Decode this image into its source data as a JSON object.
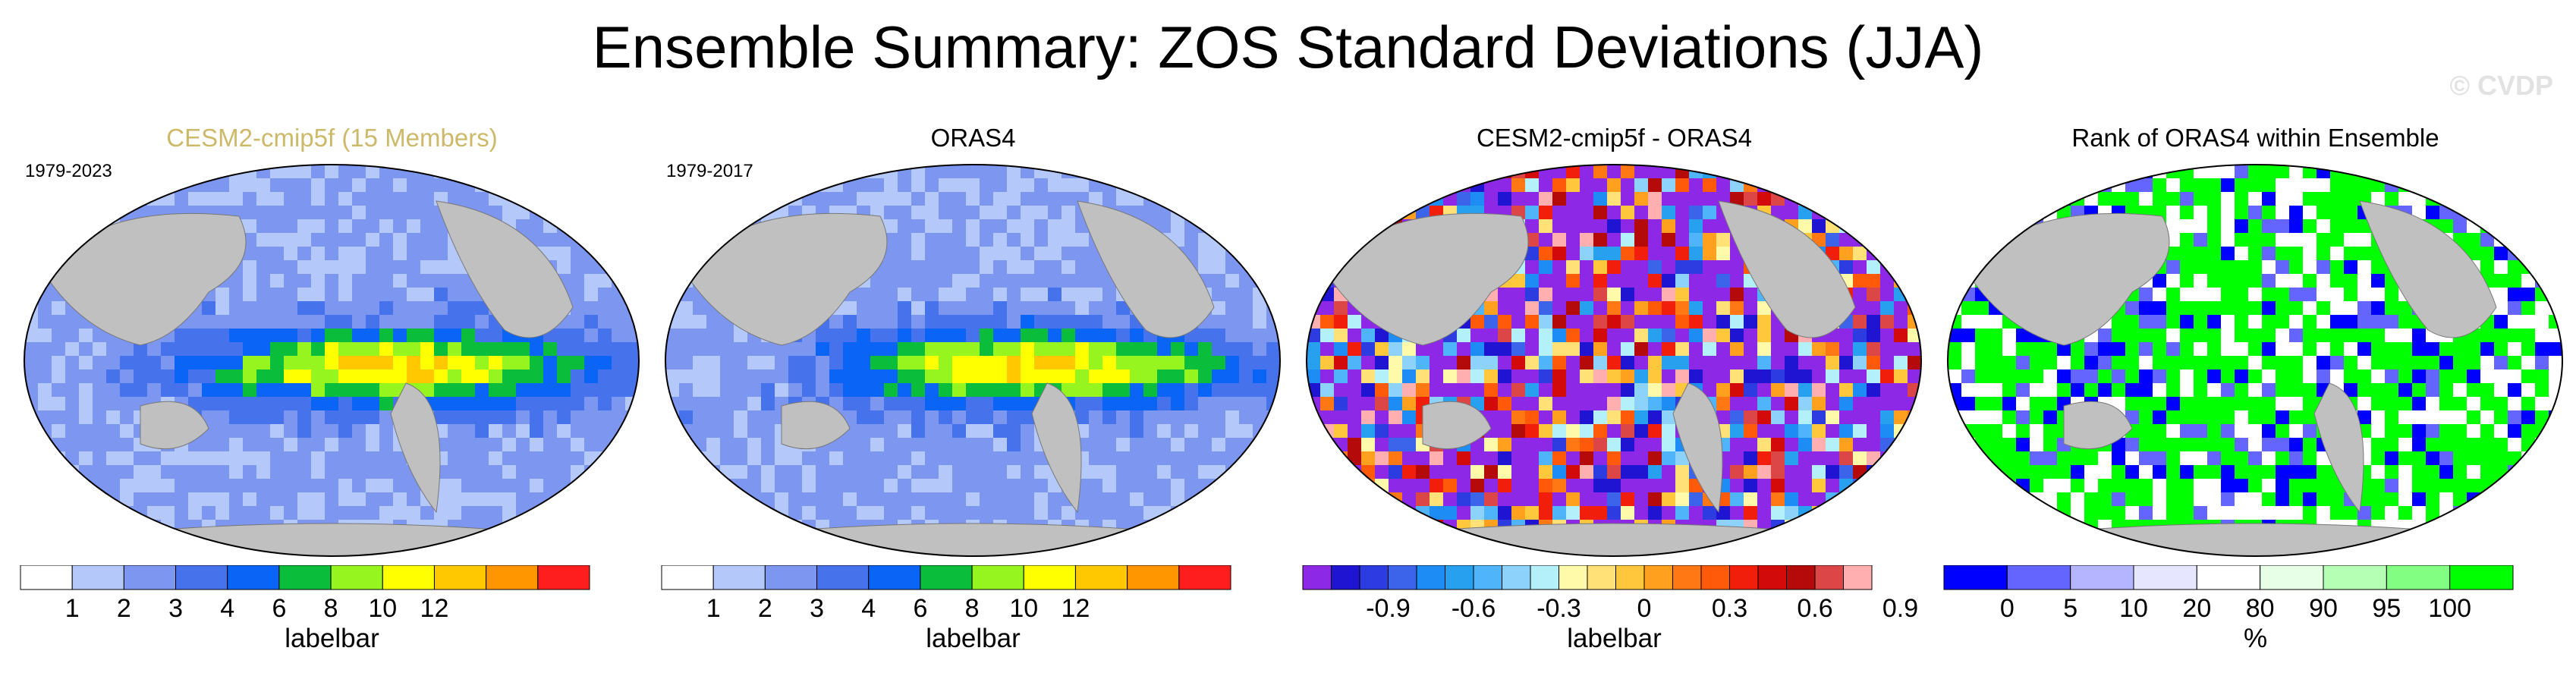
{
  "title": "Ensemble Summary: ZOS Standard Deviations (JJA)",
  "credit": "© CVDP",
  "panels": [
    {
      "title": "CESM2-cmip5f (15 Members)",
      "title_color": "#cdb96a",
      "period": "1979-2023",
      "colorbar": {
        "colors": [
          "#ffffff",
          "#b4c8fa",
          "#7d96f0",
          "#4673eb",
          "#0a64f5",
          "#0abe3c",
          "#96f51e",
          "#ffff00",
          "#ffc800",
          "#ff9600",
          "#ff1e1e"
        ],
        "labels": [
          "1",
          "2",
          "3",
          "4",
          "6",
          "8",
          "10",
          "12"
        ],
        "title": "labelbar"
      }
    },
    {
      "title": "ORAS4",
      "title_color": "#000000",
      "period": "1979-2017",
      "colorbar": {
        "colors": [
          "#ffffff",
          "#b4c8fa",
          "#7d96f0",
          "#4673eb",
          "#0a64f5",
          "#0abe3c",
          "#96f51e",
          "#ffff00",
          "#ffc800",
          "#ff9600",
          "#ff1e1e"
        ],
        "labels": [
          "1",
          "2",
          "3",
          "4",
          "6",
          "8",
          "10",
          "12"
        ],
        "title": "labelbar"
      }
    },
    {
      "title": "CESM2-cmip5f - ORAS4",
      "title_color": "#000000",
      "period": "",
      "colorbar": {
        "colors": [
          "#8c28e6",
          "#1e14d2",
          "#2d3ce1",
          "#3c64eb",
          "#1e8cf5",
          "#28a0f0",
          "#50b4fa",
          "#8cd2fa",
          "#b4f0fa",
          "#fffaaa",
          "#ffe178",
          "#ffc83c",
          "#ffa01e",
          "#ff7814",
          "#ff5a0a",
          "#f01e0a",
          "#d20a0a",
          "#b40a0a",
          "#dc4646",
          "#ffafaf"
        ],
        "labels": [
          "-0.9",
          "-0.6",
          "-0.3",
          "0",
          "0.3",
          "0.6",
          "0.9"
        ],
        "title": "labelbar"
      }
    },
    {
      "title": "Rank of ORAS4 within Ensemble",
      "title_color": "#000000",
      "period": "",
      "colorbar": {
        "colors": [
          "#0000ff",
          "#6464ff",
          "#b4b4ff",
          "#e6e6ff",
          "#ffffff",
          "#e6ffe6",
          "#b4ffb4",
          "#82ff82",
          "#00ff00"
        ],
        "labels": [
          "0",
          "5",
          "10",
          "20",
          "80",
          "90",
          "95",
          "100"
        ],
        "title": "%"
      }
    }
  ]
}
